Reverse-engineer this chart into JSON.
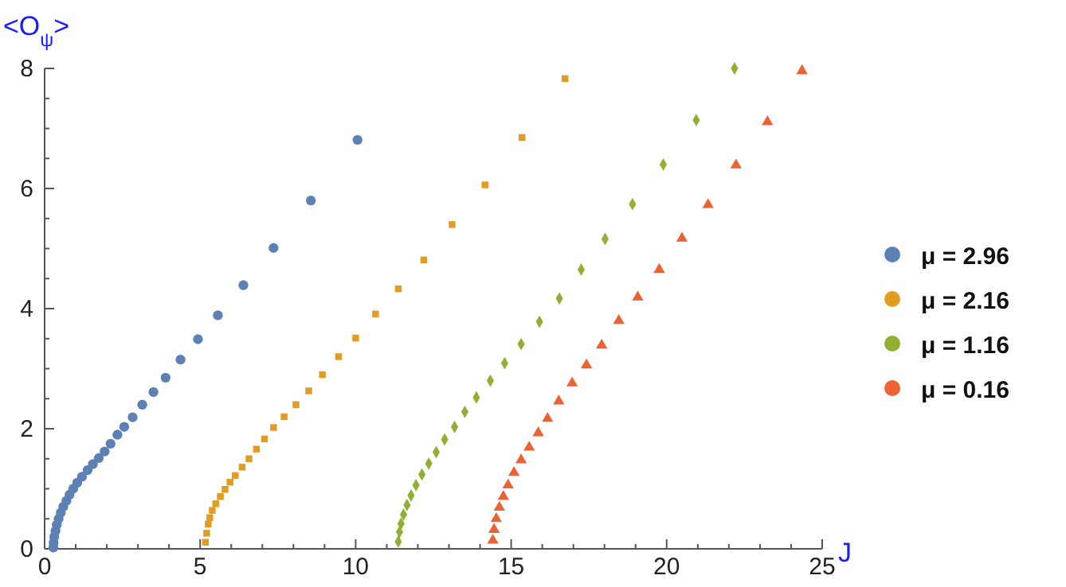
{
  "chart_data": {
    "type": "scatter",
    "xlabel": "J",
    "ylabel": "<O$_{ψ}$>",
    "xlim": [
      0,
      25
    ],
    "ylim": [
      0,
      8
    ],
    "xticks": [
      0,
      {
        "value": 1,
        "label": null
      },
      {
        "value": 2,
        "label": null
      },
      {
        "value": 3,
        "label": null
      },
      {
        "value": 4,
        "label": null
      },
      5,
      {
        "value": 6,
        "label": null
      },
      {
        "value": 7,
        "label": null
      },
      {
        "value": 8,
        "label": null
      },
      {
        "value": 9,
        "label": null
      },
      10,
      {
        "value": 11,
        "label": null
      },
      {
        "value": 12,
        "label": null
      },
      {
        "value": 13,
        "label": null
      },
      {
        "value": 14,
        "label": null
      },
      15,
      {
        "value": 16,
        "label": null
      },
      {
        "value": 17,
        "label": null
      },
      {
        "value": 18,
        "label": null
      },
      {
        "value": 19,
        "label": null
      },
      20,
      {
        "value": 21,
        "label": null
      },
      {
        "value": 22,
        "label": null
      },
      {
        "value": 23,
        "label": null
      },
      {
        "value": 24,
        "label": null
      },
      25
    ],
    "yticks": [
      0,
      {
        "value": 0.5,
        "label": null
      },
      {
        "value": 1,
        "label": null
      },
      {
        "value": 1.5,
        "label": null
      },
      2,
      {
        "value": 2.5,
        "label": null
      },
      {
        "value": 3,
        "label": null
      },
      {
        "value": 3.5,
        "label": null
      },
      4,
      {
        "value": 4.5,
        "label": null
      },
      {
        "value": 5,
        "label": null
      },
      {
        "value": 5.5,
        "label": null
      },
      6,
      {
        "value": 6.5,
        "label": null
      },
      {
        "value": 7,
        "label": null
      },
      {
        "value": 7.5,
        "label": null
      },
      8
    ],
    "grid": false,
    "legend": "right",
    "series": [
      {
        "name": "μ = 2.96",
        "color": "#5e81b5",
        "marker": "circle",
        "x": [
          0.28,
          0.29,
          0.31,
          0.35,
          0.39,
          0.45,
          0.52,
          0.6,
          0.7,
          0.8,
          0.92,
          1.05,
          1.2,
          1.38,
          1.55,
          1.74,
          1.93,
          2.12,
          2.34,
          2.56,
          2.83,
          3.14,
          3.5,
          3.89,
          4.37,
          4.93,
          5.57,
          6.39,
          7.36,
          8.56,
          10.06
        ],
        "values": [
          0.02,
          0.1,
          0.2,
          0.3,
          0.4,
          0.5,
          0.6,
          0.7,
          0.8,
          0.9,
          1.0,
          1.1,
          1.2,
          1.31,
          1.41,
          1.51,
          1.62,
          1.75,
          1.9,
          2.03,
          2.19,
          2.4,
          2.61,
          2.85,
          3.15,
          3.49,
          3.89,
          4.39,
          5.01,
          5.8,
          6.81
        ]
      },
      {
        "name": "μ = 2.16",
        "color": "#e19c24",
        "marker": "square",
        "x": [
          5.17,
          5.21,
          5.26,
          5.31,
          5.39,
          5.5,
          5.65,
          5.8,
          5.96,
          6.13,
          6.35,
          6.57,
          6.81,
          7.07,
          7.36,
          7.7,
          8.08,
          8.49,
          8.93,
          9.45,
          10.0,
          10.64,
          11.37,
          12.19,
          13.1,
          14.16,
          15.35,
          16.73
        ],
        "values": [
          0.11,
          0.26,
          0.41,
          0.52,
          0.64,
          0.75,
          0.87,
          0.99,
          1.11,
          1.22,
          1.36,
          1.5,
          1.66,
          1.83,
          2.02,
          2.2,
          2.4,
          2.63,
          2.9,
          3.2,
          3.51,
          3.91,
          4.33,
          4.81,
          5.4,
          6.06,
          6.85,
          7.83
        ]
      },
      {
        "name": "μ = 1.16",
        "color": "#8fb032",
        "marker": "diamond",
        "x": [
          11.37,
          11.41,
          11.46,
          11.54,
          11.65,
          11.78,
          11.94,
          12.13,
          12.35,
          12.59,
          12.86,
          13.18,
          13.51,
          13.88,
          14.33,
          14.79,
          15.32,
          15.91,
          16.55,
          17.25,
          18.02,
          18.9,
          19.89,
          20.95,
          22.18
        ],
        "values": [
          0.12,
          0.28,
          0.42,
          0.57,
          0.73,
          0.89,
          1.06,
          1.24,
          1.42,
          1.61,
          1.82,
          2.03,
          2.28,
          2.52,
          2.8,
          3.09,
          3.41,
          3.78,
          4.17,
          4.65,
          5.16,
          5.74,
          6.4,
          7.14,
          8.0
        ]
      },
      {
        "name": "μ = 0.16",
        "color": "#eb6235",
        "marker": "triangle",
        "x": [
          14.41,
          14.45,
          14.52,
          14.62,
          14.75,
          14.9,
          15.09,
          15.32,
          15.58,
          15.87,
          16.17,
          16.53,
          16.96,
          17.42,
          17.91,
          18.46,
          19.07,
          19.76,
          20.49,
          21.33,
          22.23,
          23.24,
          24.35
        ],
        "values": [
          0.14,
          0.32,
          0.5,
          0.69,
          0.87,
          1.06,
          1.27,
          1.48,
          1.69,
          1.93,
          2.17,
          2.46,
          2.76,
          3.06,
          3.39,
          3.8,
          4.19,
          4.65,
          5.17,
          5.73,
          6.39,
          7.11,
          7.96
        ]
      }
    ]
  }
}
